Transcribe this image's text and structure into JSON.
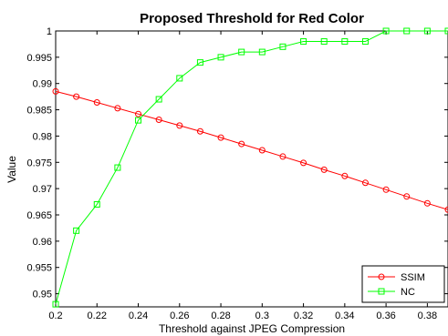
{
  "chart_data": {
    "type": "line",
    "title": "Proposed Threshold for Red Color",
    "xlabel": "Threshold against JPEG Compression",
    "ylabel": "Value",
    "xlim": [
      0.2,
      0.39
    ],
    "ylim": [
      0.9475,
      1.0
    ],
    "xticks": [
      0.2,
      0.22,
      0.24,
      0.26,
      0.28,
      0.3,
      0.32,
      0.34,
      0.36,
      0.38
    ],
    "xtick_labels": [
      "0.2",
      "0.22",
      "0.24",
      "0.26",
      "0.28",
      "0.3",
      "0.32",
      "0.34",
      "0.36",
      "0.38"
    ],
    "yticks": [
      0.95,
      0.955,
      0.96,
      0.965,
      0.97,
      0.975,
      0.98,
      0.985,
      0.99,
      0.995,
      1.0
    ],
    "ytick_labels": [
      "0.95",
      "0.955",
      "0.96",
      "0.965",
      "0.97",
      "0.975",
      "0.98",
      "0.985",
      "0.99",
      "0.995",
      "1"
    ],
    "grid": false,
    "legend_position": "bottom-right",
    "x": [
      0.2,
      0.21,
      0.22,
      0.23,
      0.24,
      0.25,
      0.26,
      0.27,
      0.28,
      0.29,
      0.3,
      0.31,
      0.32,
      0.33,
      0.34,
      0.35,
      0.36,
      0.37,
      0.38,
      0.39
    ],
    "series": [
      {
        "name": "SSIM",
        "color": "#ff0000",
        "marker": "circle",
        "values": [
          0.9885,
          0.9875,
          0.9864,
          0.9853,
          0.9842,
          0.9831,
          0.982,
          0.9809,
          0.9797,
          0.9785,
          0.9773,
          0.9761,
          0.9749,
          0.9736,
          0.9724,
          0.9711,
          0.9698,
          0.9685,
          0.9672,
          0.966
        ]
      },
      {
        "name": "NC",
        "color": "#00ff00",
        "marker": "square",
        "values": [
          0.948,
          0.962,
          0.967,
          0.974,
          0.983,
          0.987,
          0.991,
          0.994,
          0.995,
          0.996,
          0.996,
          0.997,
          0.998,
          0.998,
          0.998,
          0.998,
          1.0,
          1.0,
          1.0,
          1.0
        ]
      }
    ]
  }
}
